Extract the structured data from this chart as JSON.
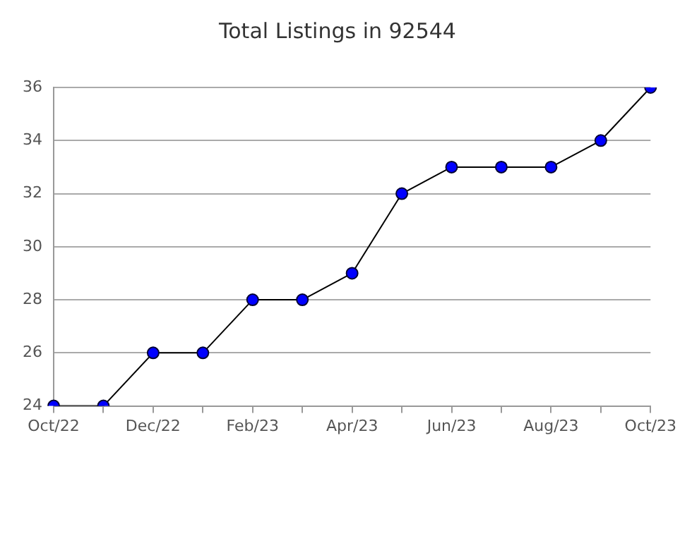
{
  "chart_data": {
    "type": "line",
    "title": "Total Listings in 92544",
    "categories": [
      "Oct/22",
      null,
      "Dec/22",
      null,
      "Feb/23",
      null,
      "Apr/23",
      null,
      "Jun/23",
      null,
      "Aug/23",
      null,
      "Oct/23"
    ],
    "series": [
      {
        "color": "#0000ff",
        "values": [
          24,
          24,
          26,
          26,
          28,
          28,
          29,
          32,
          33,
          33,
          33,
          34,
          36
        ]
      }
    ],
    "ylim": [
      24,
      36
    ],
    "yticks": [
      24,
      26,
      28,
      30,
      32,
      34,
      36
    ],
    "grid": "y",
    "legend": false,
    "marker": "circle",
    "line_style": "solid"
  }
}
